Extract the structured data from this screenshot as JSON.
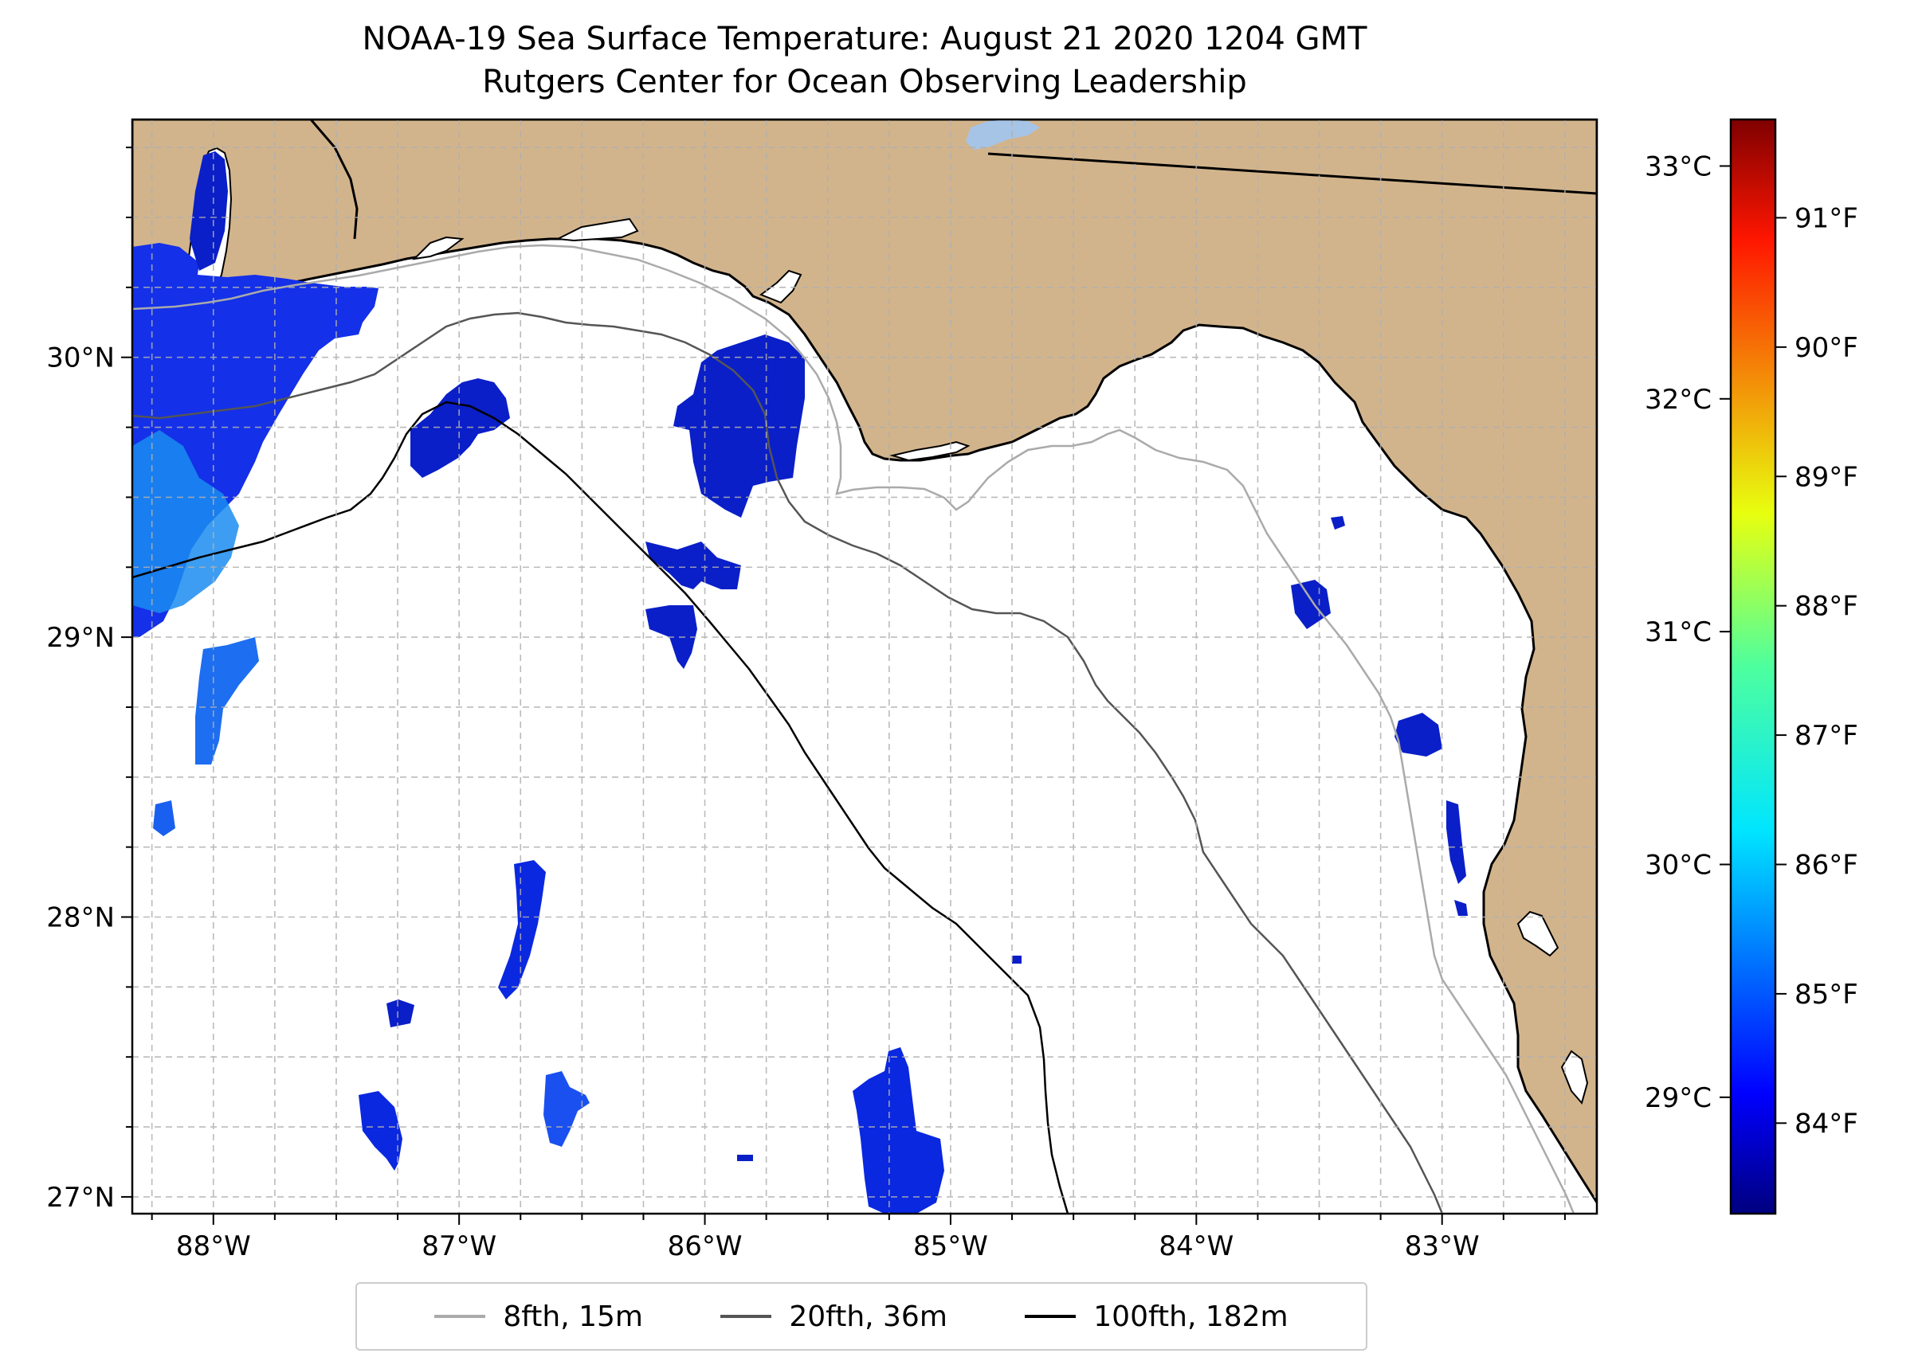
{
  "title": "NOAA-19 Sea Surface Temperature: August 21 2020 1204 GMT",
  "subtitle": "Rutgers Center for Ocean Observing Leadership",
  "map": {
    "lon_range": [
      -88.33,
      -82.37
    ],
    "lat_range": [
      26.94,
      30.85
    ],
    "lat_ticks": [
      {
        "value": 30,
        "label": "30°N"
      },
      {
        "value": 29,
        "label": "29°N"
      },
      {
        "value": 28,
        "label": "28°N"
      },
      {
        "value": 27,
        "label": "27°N"
      }
    ],
    "lon_ticks": [
      {
        "value": -88,
        "label": "88°W"
      },
      {
        "value": -87,
        "label": "87°W"
      },
      {
        "value": -86,
        "label": "86°W"
      },
      {
        "value": -85,
        "label": "85°W"
      },
      {
        "value": -84,
        "label": "84°W"
      },
      {
        "value": -83,
        "label": "83°W"
      }
    ],
    "land_color": "#d2b48c",
    "water_color": "#ffffff",
    "grid": "dashed"
  },
  "legend": {
    "placement": "bottom-center",
    "items": [
      {
        "label": "8fth, 15m",
        "color": "#aaaaaa"
      },
      {
        "label": "20fth, 36m",
        "color": "#555555"
      },
      {
        "label": "100fth, 182m",
        "color": "#000000"
      }
    ]
  },
  "colorbar": {
    "colormap": "jet",
    "range_c": [
      28.5,
      33.2
    ],
    "celsius_ticks": [
      {
        "value": 29,
        "label": "29°C"
      },
      {
        "value": 30,
        "label": "30°C"
      },
      {
        "value": 31,
        "label": "31°C"
      },
      {
        "value": 32,
        "label": "32°C"
      },
      {
        "value": 33,
        "label": "33°C"
      }
    ],
    "fahrenheit_ticks": [
      {
        "value": 84,
        "label": "84°F"
      },
      {
        "value": 85,
        "label": "85°F"
      },
      {
        "value": 86,
        "label": "86°F"
      },
      {
        "value": 87,
        "label": "87°F"
      },
      {
        "value": 88,
        "label": "88°F"
      },
      {
        "value": 89,
        "label": "89°F"
      },
      {
        "value": 90,
        "label": "90°F"
      },
      {
        "value": 91,
        "label": "91°F"
      }
    ]
  }
}
